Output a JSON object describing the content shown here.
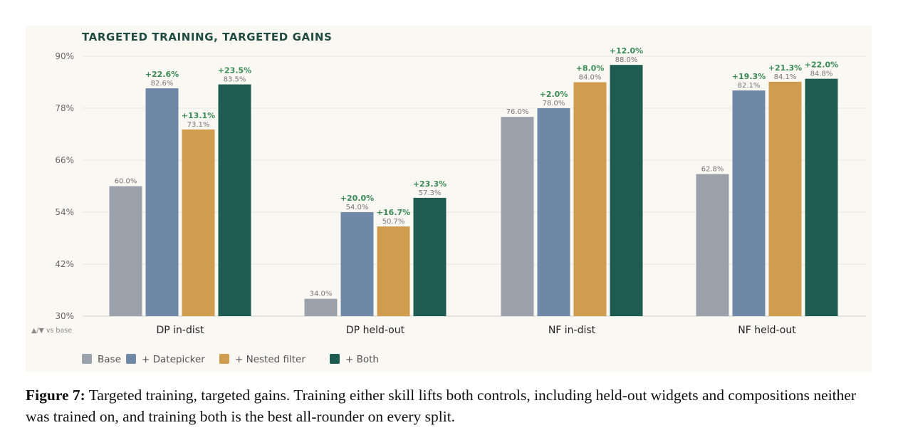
{
  "colors": {
    "Base": "#9aa1aa",
    "Datepicker": "#7088a7",
    "Nested filter": "#d09c4d",
    "Both": "#1e5c52",
    "delta": "#3a8a55",
    "title": "#1f4a40"
  },
  "chart_data": {
    "type": "bar",
    "title": "TARGETED TRAINING, TARGETED GAINS",
    "note": "▲/▼ vs base",
    "xlabel": "",
    "ylabel": "",
    "ylim": [
      30,
      90
    ],
    "yticks": [
      30,
      42,
      54,
      66,
      78,
      90
    ],
    "ytick_labels": [
      "30%",
      "42%",
      "54%",
      "66%",
      "78%",
      "90%"
    ],
    "grid": true,
    "legend_position": "bottom-left",
    "categories": [
      "DP in-dist",
      "DP held-out",
      "NF in-dist",
      "NF held-out"
    ],
    "series": [
      {
        "name": "Base",
        "legend_label": "Base",
        "values": [
          60.0,
          34.0,
          76.0,
          62.8
        ],
        "value_labels": [
          "60.0%",
          "34.0%",
          "76.0%",
          "62.8%"
        ],
        "deltas": [
          "",
          "",
          "",
          ""
        ]
      },
      {
        "name": "Datepicker",
        "legend_label": "+ Datepicker",
        "values": [
          82.6,
          54.0,
          78.0,
          82.1
        ],
        "value_labels": [
          "82.6%",
          "54.0%",
          "78.0%",
          "82.1%"
        ],
        "deltas": [
          "+22.6%",
          "+20.0%",
          "+2.0%",
          "+19.3%"
        ]
      },
      {
        "name": "Nested filter",
        "legend_label": "+ Nested filter",
        "values": [
          73.1,
          50.7,
          84.0,
          84.1
        ],
        "value_labels": [
          "73.1%",
          "50.7%",
          "84.0%",
          "84.1%"
        ],
        "deltas": [
          "+13.1%",
          "+16.7%",
          "+8.0%",
          "+21.3%"
        ]
      },
      {
        "name": "Both",
        "legend_label": "+ Both",
        "values": [
          83.5,
          57.3,
          88.0,
          84.8
        ],
        "value_labels": [
          "83.5%",
          "57.3%",
          "88.0%",
          "84.8%"
        ],
        "deltas": [
          "+23.5%",
          "+23.3%",
          "+12.0%",
          "+22.0%"
        ]
      }
    ]
  },
  "caption": {
    "label": "Figure 7:",
    "text": " Targeted training, targeted gains. Training either skill lifts both controls, including held-out widgets and compositions neither was trained on, and training both is the best all-rounder on every split."
  }
}
